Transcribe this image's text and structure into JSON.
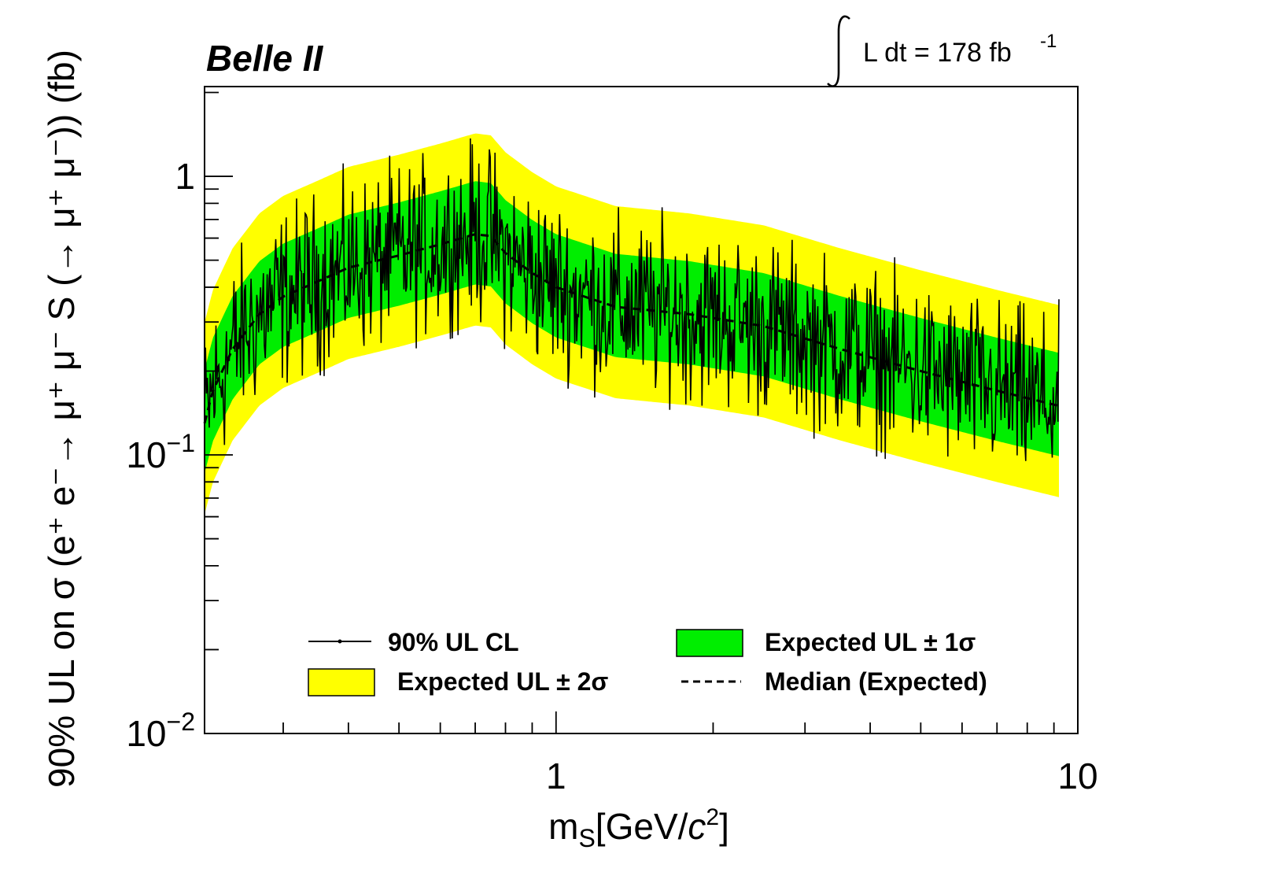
{
  "chart_data": {
    "type": "line",
    "experiment_label": "Belle II",
    "luminosity": {
      "text": "L dt = 178 fb",
      "superscript": "-1"
    },
    "xlabel": {
      "main": "m",
      "sub": "S",
      "rest": "[GeV/",
      "c": "c",
      "sup": "2",
      "end": "]"
    },
    "ylabel": "90% UL on σ (e⁺ e⁻→ μ⁺ μ⁻ S (→ μ⁺ μ⁻)) (fb)",
    "x_scale": "log",
    "y_scale": "log",
    "xlim": [
      0.212,
      10
    ],
    "ylim": [
      0.01,
      2.1
    ],
    "x_ticks": [
      {
        "value": 1,
        "label": "1"
      },
      {
        "value": 10,
        "label": "10"
      }
    ],
    "y_ticks": [
      {
        "value": 1,
        "base": "1",
        "exp": ""
      },
      {
        "value": 0.1,
        "base": "10",
        "exp": "−1"
      },
      {
        "value": 0.01,
        "base": "10",
        "exp": "−2"
      }
    ],
    "legend": {
      "placement": "bottom-center",
      "observed": "90% UL CL",
      "band1": "Expected UL ± 1σ",
      "band2": "Expected UL ± 2σ",
      "median": "Median (Expected)"
    },
    "colors": {
      "band1": "#00ee00",
      "band2": "#ffff00",
      "line": "#000000"
    },
    "mass_range": [
      0.212,
      9.2
    ],
    "median_curve": [
      {
        "m": 0.212,
        "ul": 0.13
      },
      {
        "m": 0.22,
        "ul": 0.17
      },
      {
        "m": 0.24,
        "ul": 0.24
      },
      {
        "m": 0.27,
        "ul": 0.32
      },
      {
        "m": 0.3,
        "ul": 0.37
      },
      {
        "m": 0.35,
        "ul": 0.42
      },
      {
        "m": 0.4,
        "ul": 0.47
      },
      {
        "m": 0.5,
        "ul": 0.52
      },
      {
        "m": 0.6,
        "ul": 0.57
      },
      {
        "m": 0.7,
        "ul": 0.62
      },
      {
        "m": 0.75,
        "ul": 0.61
      },
      {
        "m": 0.8,
        "ul": 0.53
      },
      {
        "m": 0.9,
        "ul": 0.45
      },
      {
        "m": 1.0,
        "ul": 0.4
      },
      {
        "m": 1.3,
        "ul": 0.34
      },
      {
        "m": 1.8,
        "ul": 0.32
      },
      {
        "m": 2.5,
        "ul": 0.29
      },
      {
        "m": 3.5,
        "ul": 0.24
      },
      {
        "m": 5.0,
        "ul": 0.2
      },
      {
        "m": 7.0,
        "ul": 0.17
      },
      {
        "m": 9.2,
        "ul": 0.15
      }
    ],
    "band_factors": {
      "one_sigma_up": 1.55,
      "one_sigma_down": 0.66,
      "two_sigma_up": 2.3,
      "two_sigma_down": 0.47
    },
    "observed_spread": "observed UL fluctuates around the median, mostly within the ±2σ band (roughly 0.06 to 1.3 fb)"
  }
}
